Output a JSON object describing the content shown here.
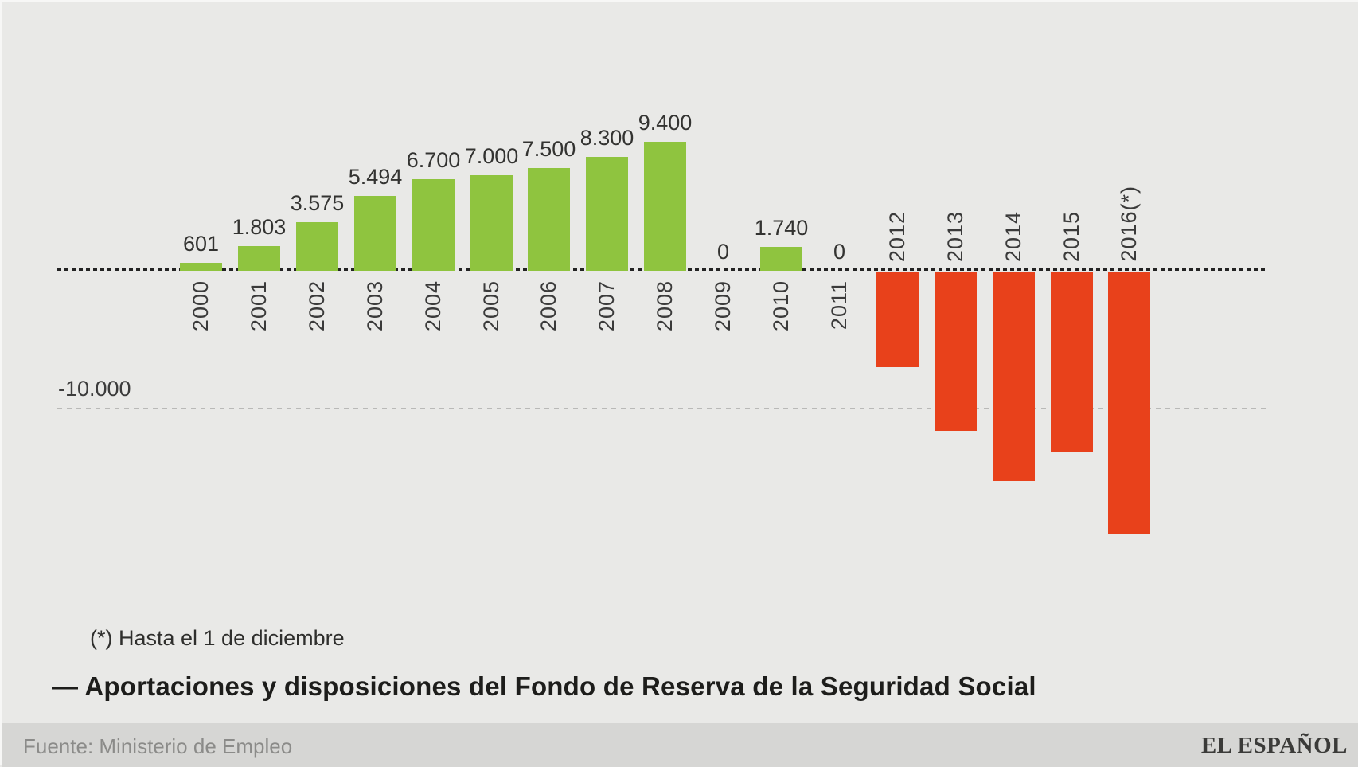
{
  "chart_data": {
    "type": "bar",
    "title": "— Aportaciones y disposiciones del Fondo de Reserva de la Seguridad Social",
    "footnote": "(*) Hasta el 1 de diciembre",
    "categories": [
      "2000",
      "2001",
      "2002",
      "2003",
      "2004",
      "2005",
      "2006",
      "2007",
      "2008",
      "2009",
      "2010",
      "2011",
      "2012",
      "2013",
      "2014",
      "2015",
      "2016(*)"
    ],
    "values": [
      601,
      1803,
      3575,
      5494,
      6700,
      7000,
      7500,
      8300,
      9400,
      0,
      1740,
      0,
      -7000,
      -11600,
      -15300,
      -13150,
      -19100
    ],
    "value_labels": [
      "601",
      "1.803",
      "3.575",
      "5.494",
      "6.700",
      "7.000",
      "7.500",
      "8.300",
      "9.400",
      "0",
      "1.740",
      "0",
      null,
      null,
      null,
      null,
      null
    ],
    "xlabel": "",
    "ylabel": "",
    "ylim": [
      -20000,
      10500
    ],
    "grid": "single dashed horizontal gridline at -10.000; dotted baseline at 0",
    "legend": "none",
    "y_gridline": {
      "value": -10000,
      "label": "-10.000"
    },
    "positive_color": "#8fc43f",
    "negative_color": "#e8411b"
  },
  "footer": {
    "source": "Fuente: Ministerio de Empleo",
    "publisher": "EL ESPAÑOL"
  }
}
